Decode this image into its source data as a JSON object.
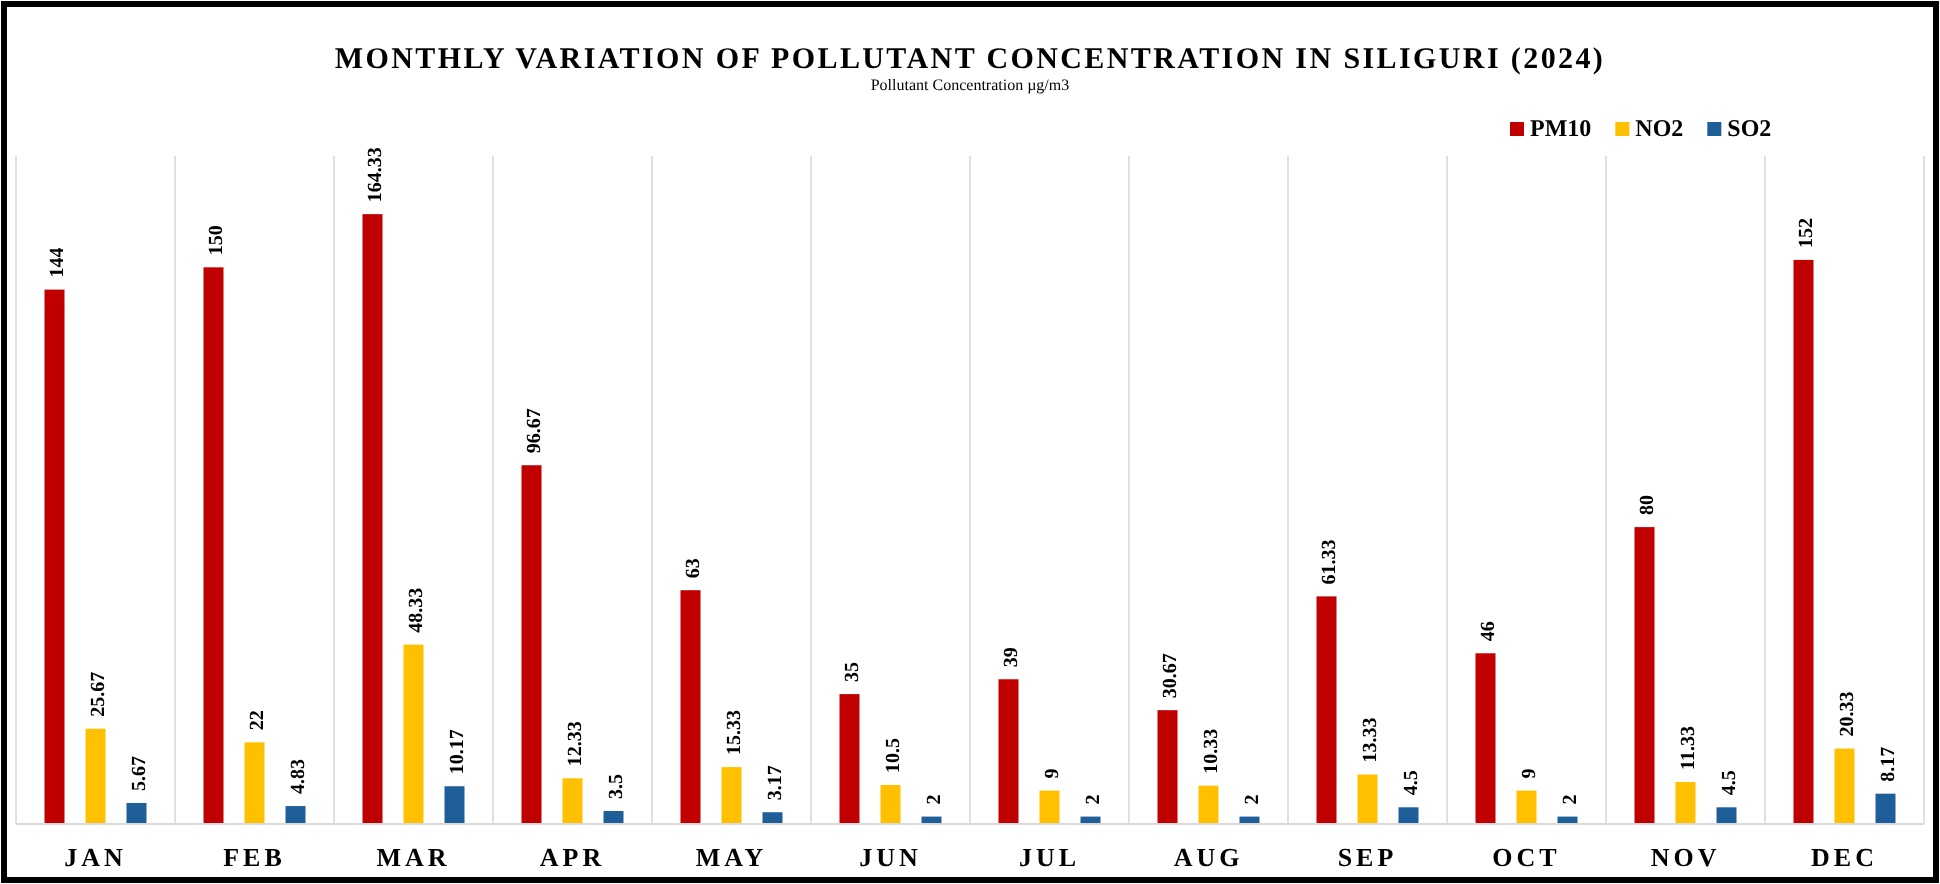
{
  "chart_data": {
    "type": "bar",
    "title": "MONTHLY VARIATION OF POLLUTANT CONCENTRATION IN SILIGURI (2024)",
    "subtitle": "Pollutant Concentration µg/m3",
    "categories": [
      "JAN",
      "FEB",
      "MAR",
      "APR",
      "MAY",
      "JUN",
      "JUL",
      "AUG",
      "SEP",
      "OCT",
      "NOV",
      "DEC"
    ],
    "series": [
      {
        "name": "PM10",
        "color": "#c00000",
        "values": [
          144,
          150,
          164.33,
          96.67,
          63,
          35,
          39,
          30.67,
          61.33,
          46,
          80,
          152
        ]
      },
      {
        "name": "NO2",
        "color": "#ffc000",
        "values": [
          25.67,
          22,
          48.33,
          12.33,
          15.33,
          10.5,
          9,
          10.33,
          13.33,
          9,
          11.33,
          20.33
        ]
      },
      {
        "name": "SO2",
        "color": "#1f5f99",
        "values": [
          5.67,
          4.83,
          10.17,
          3.5,
          3.17,
          2,
          2,
          2,
          4.5,
          2,
          4.5,
          8.17
        ]
      }
    ],
    "ylim": [
      0,
      180
    ],
    "data_labels": true,
    "legend": "top right",
    "grid": "x",
    "tick_labels": "x"
  }
}
